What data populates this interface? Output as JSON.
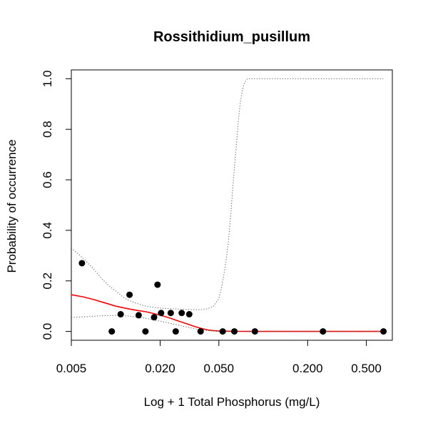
{
  "chart_data": {
    "type": "scatter",
    "title": "Rossithidium_pusillum",
    "xlabel": "Log + 1 Total Phosphorus (mg/L)",
    "ylabel": "Probability of occurrence",
    "x_scale": "log",
    "xlim": [
      0.005,
      0.75
    ],
    "ylim": [
      -0.035,
      1.035
    ],
    "x_ticks": [
      0.005,
      0.02,
      0.05,
      0.2,
      0.5
    ],
    "x_tick_labels": [
      "0.005",
      "0.020",
      "0.050",
      "0.200",
      "0.500"
    ],
    "y_ticks": [
      0.0,
      0.2,
      0.4,
      0.6,
      0.8,
      1.0
    ],
    "y_tick_labels": [
      "0.0",
      "0.2",
      "0.4",
      "0.6",
      "0.8",
      "1.0"
    ],
    "grid": false,
    "points": [
      {
        "x": 0.0059,
        "y": 0.27
      },
      {
        "x": 0.0094,
        "y": 0.0
      },
      {
        "x": 0.0108,
        "y": 0.068
      },
      {
        "x": 0.0124,
        "y": 0.145
      },
      {
        "x": 0.0143,
        "y": 0.064
      },
      {
        "x": 0.0159,
        "y": 0.0
      },
      {
        "x": 0.0182,
        "y": 0.056
      },
      {
        "x": 0.0192,
        "y": 0.185
      },
      {
        "x": 0.0203,
        "y": 0.073
      },
      {
        "x": 0.0236,
        "y": 0.073
      },
      {
        "x": 0.0255,
        "y": 0.0
      },
      {
        "x": 0.028,
        "y": 0.073
      },
      {
        "x": 0.0315,
        "y": 0.068
      },
      {
        "x": 0.0376,
        "y": 0.0
      },
      {
        "x": 0.0531,
        "y": 0.0
      },
      {
        "x": 0.0637,
        "y": 0.0
      },
      {
        "x": 0.0878,
        "y": 0.0
      },
      {
        "x": 0.254,
        "y": 0.0
      },
      {
        "x": 0.653,
        "y": 0.0
      }
    ],
    "series": [
      {
        "style": "solid",
        "color": "#ff0000",
        "x": [
          0.005,
          0.006,
          0.007,
          0.008,
          0.009,
          0.01,
          0.012,
          0.014,
          0.016,
          0.018,
          0.02,
          0.023,
          0.026,
          0.03,
          0.034,
          0.038,
          0.042,
          0.046,
          0.05,
          0.055,
          0.06,
          0.07,
          0.08,
          0.1,
          0.15,
          0.2,
          0.3,
          0.5,
          0.65
        ],
        "y": [
          0.145,
          0.137,
          0.127,
          0.117,
          0.108,
          0.1,
          0.09,
          0.083,
          0.078,
          0.071,
          0.064,
          0.054,
          0.043,
          0.031,
          0.02,
          0.012,
          0.006,
          0.003,
          0.002,
          0.001,
          0.0005,
          0.0002,
          0.0,
          0.0,
          0.0,
          0.0,
          0.0,
          0.0,
          0.0
        ]
      },
      {
        "style": "dotted",
        "color": "#555555",
        "x": [
          0.005,
          0.006,
          0.007,
          0.008,
          0.009,
          0.01,
          0.011,
          0.012,
          0.014,
          0.016,
          0.018,
          0.02,
          0.023,
          0.026,
          0.03,
          0.034,
          0.038,
          0.042,
          0.046,
          0.05,
          0.052,
          0.055,
          0.058,
          0.06,
          0.062,
          0.064,
          0.066,
          0.068,
          0.07,
          0.072,
          0.074,
          0.076,
          0.078,
          0.08,
          0.085,
          0.09,
          0.1,
          0.15,
          0.2,
          0.3,
          0.5,
          0.65
        ],
        "y": [
          0.33,
          0.29,
          0.25,
          0.21,
          0.18,
          0.16,
          0.14,
          0.125,
          0.11,
          0.1,
          0.095,
          0.092,
          0.09,
          0.089,
          0.087,
          0.086,
          0.086,
          0.09,
          0.1,
          0.13,
          0.17,
          0.25,
          0.35,
          0.45,
          0.56,
          0.66,
          0.75,
          0.84,
          0.91,
          0.95,
          0.98,
          0.99,
          1.0,
          1.0,
          1.0,
          1.0,
          1.0,
          1.0,
          1.0,
          1.0,
          1.0,
          1.0
        ]
      },
      {
        "style": "dotted",
        "color": "#555555",
        "x": [
          0.005,
          0.006,
          0.007,
          0.008,
          0.009,
          0.01,
          0.012,
          0.014,
          0.016,
          0.018,
          0.02,
          0.023,
          0.026,
          0.03,
          0.034,
          0.038,
          0.042,
          0.046,
          0.05,
          0.055,
          0.06,
          0.07,
          0.08,
          0.1,
          0.15,
          0.2,
          0.3,
          0.5,
          0.65
        ],
        "y": [
          0.055,
          0.058,
          0.06,
          0.062,
          0.063,
          0.063,
          0.061,
          0.057,
          0.052,
          0.046,
          0.04,
          0.033,
          0.026,
          0.018,
          0.011,
          0.006,
          0.003,
          0.001,
          0.0,
          0.0,
          0.0,
          0.0,
          0.0,
          0.0,
          0.0,
          0.0,
          0.0,
          0.0,
          0.0
        ]
      }
    ]
  }
}
